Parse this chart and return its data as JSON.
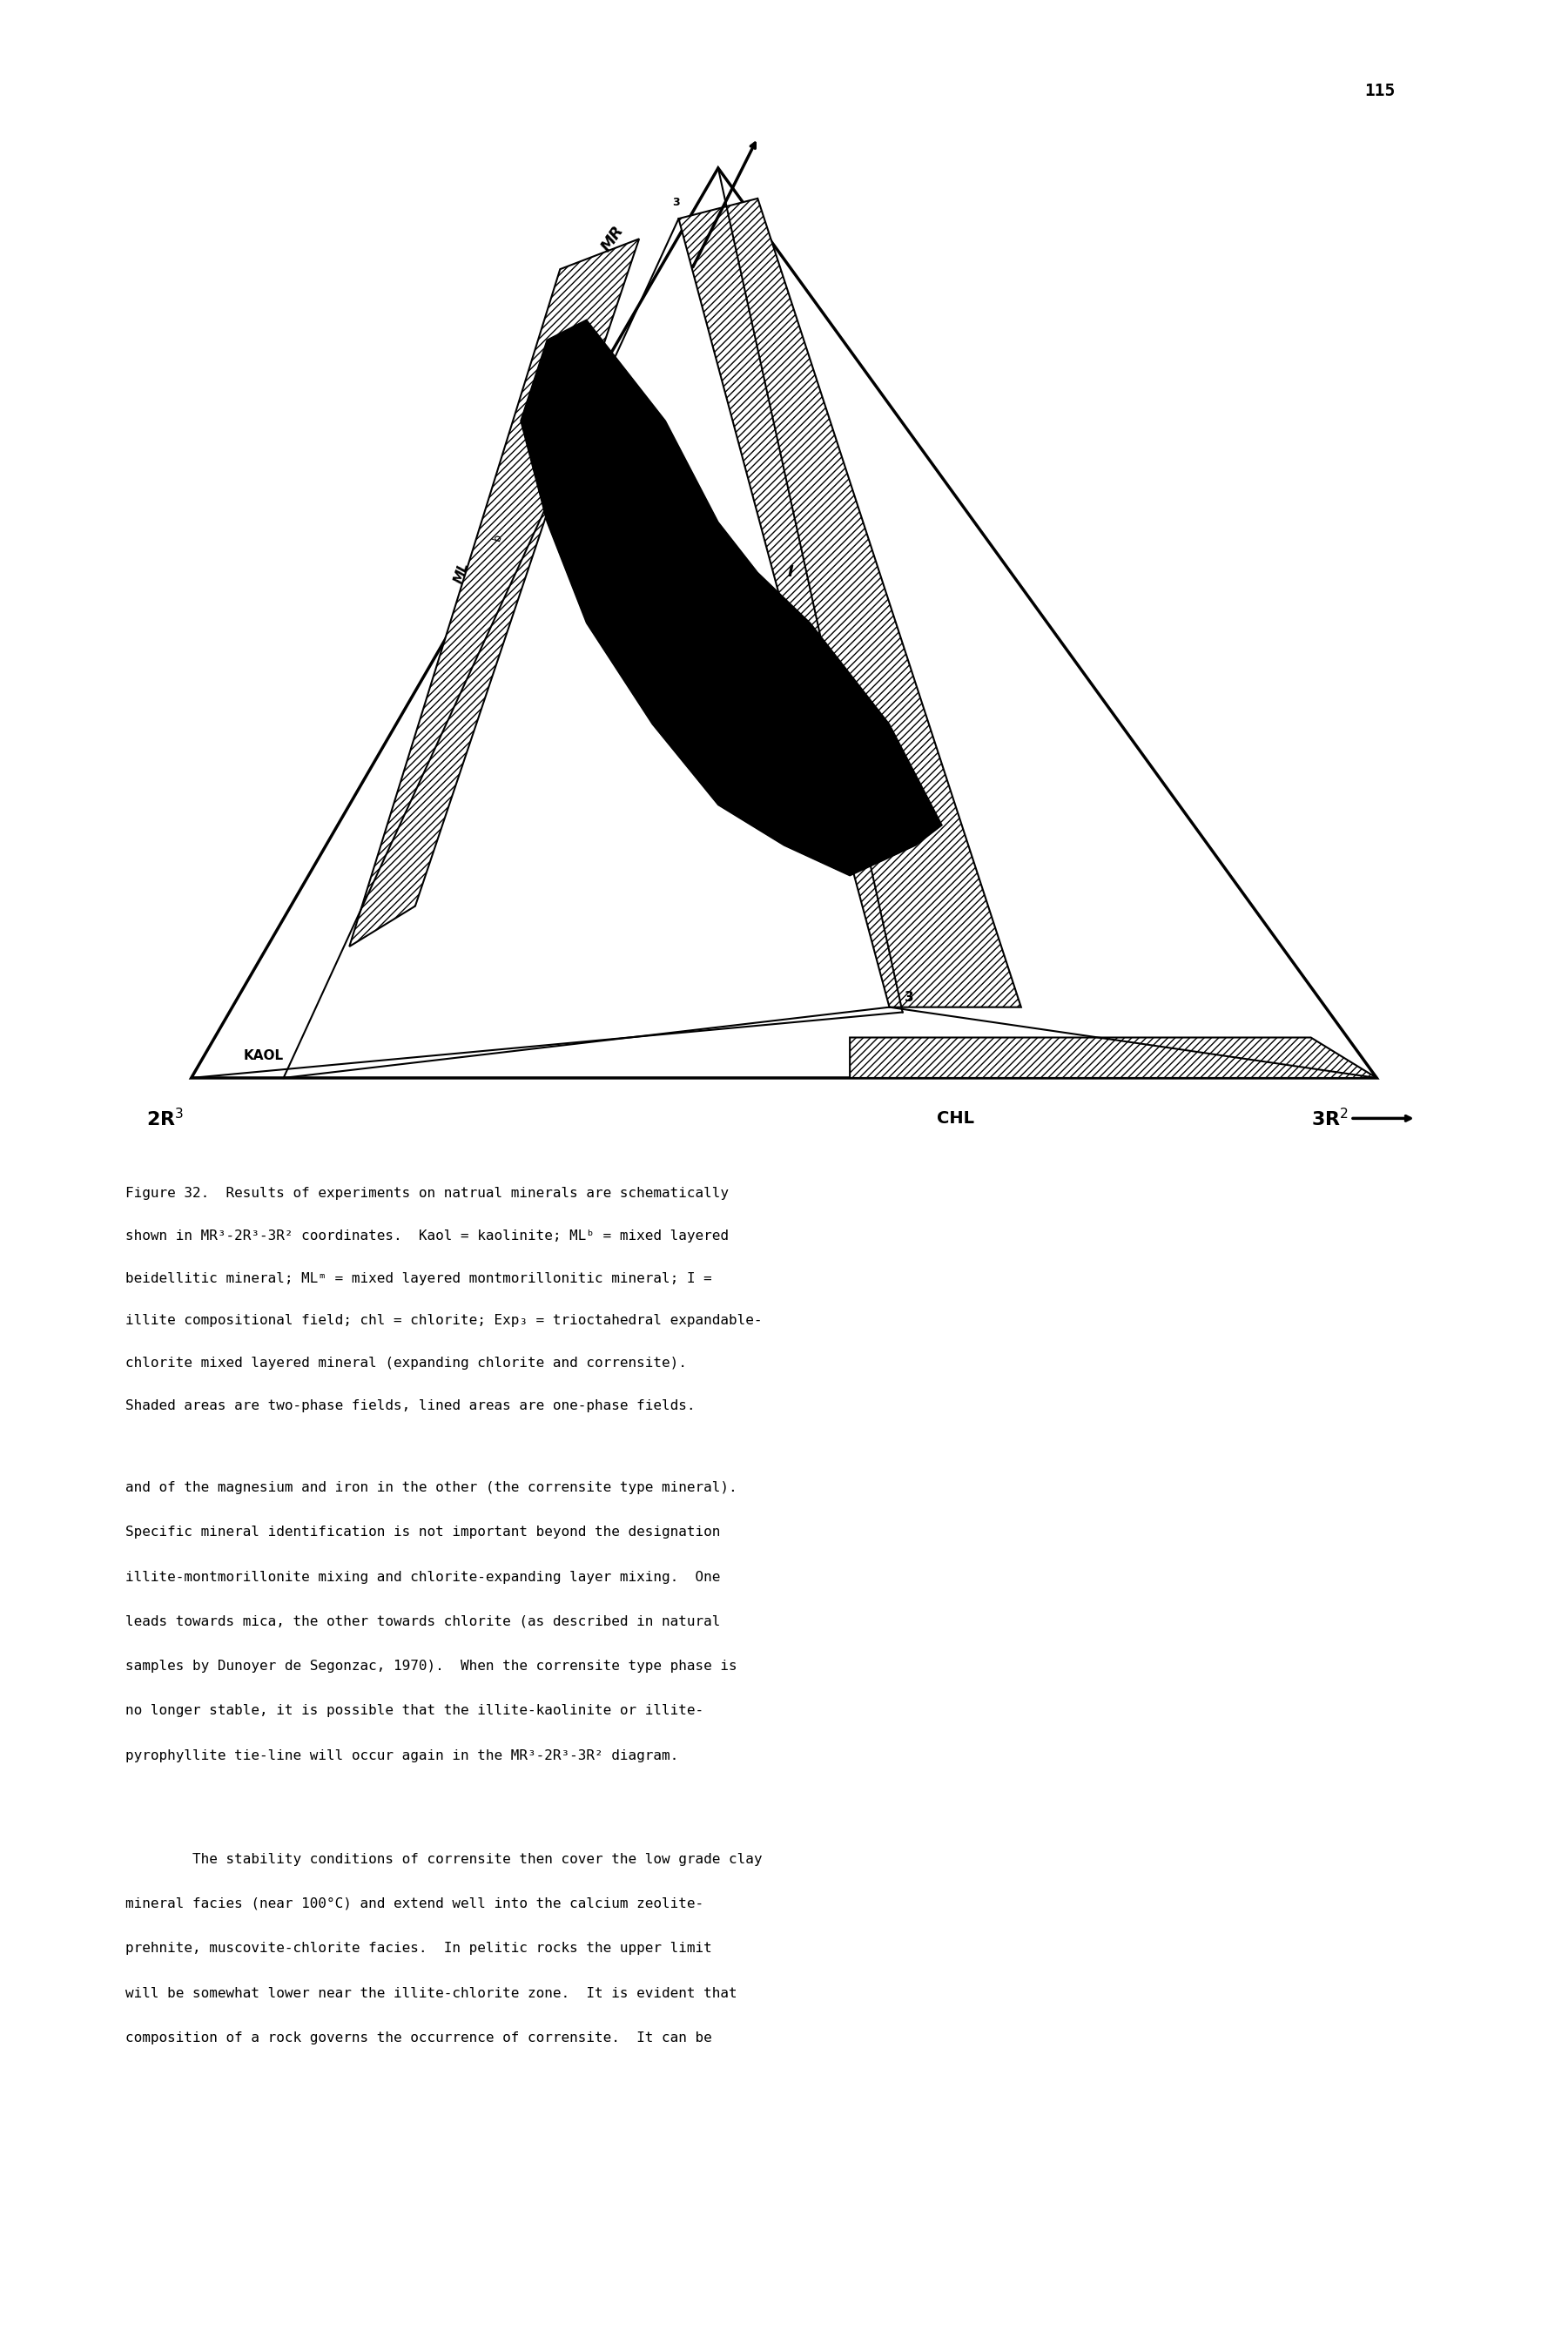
{
  "page_number": "115",
  "figure_title_lines": [
    "Figure 32.  Results of experiments on natrual minerals are schematically",
    "shown in MR³-2R³-3R² coordinates.  Kaol = kaolinite; MLᵇ = mixed layered",
    "beidellitic mineral; MLᵐ = mixed layered montmorillonitic mineral; I =",
    "illite compositional field; chl = chlorite; Exp₃ = trioctahedral expandable-",
    "chlorite mixed layered mineral (expanding chlorite and corrensite).",
    "Shaded areas are two-phase fields, lined areas are one-phase fields."
  ],
  "body_text_lines": [
    "and of the magnesium and iron in the other (the corrensite type mineral).",
    "Specific mineral identification is not important beyond the designation",
    "illite-montmorillonite mixing and chlorite-expanding layer mixing.  One",
    "leads towards mica, the other towards chlorite (as described in natural",
    "samples by Dunoyer de Segonzac, 1970).  When the corrensite type phase is",
    "no longer stable, it is possible that the illite-kaolinite or illite-",
    "pyrophyllite tie-line will occur again in the MR³-2R³-3R² diagram."
  ],
  "body_text_last": "        The stability conditions of corrensite then cover the low grade clay",
  "body_text_last2": "mineral facies (near 100°C) and extend well into the calcium zeolite-",
  "body_text_last3": "prehnite, muscovite-chlorite facies.  In pelitic rocks the upper limit",
  "body_text_last4": "will be somewhat lower near the illite-chlorite zone.  It is evident that",
  "body_text_last5": "composition of a rock governs the occurrence of corrensite.  It can be",
  "background_color": "#ffffff",
  "text_color": "#000000"
}
